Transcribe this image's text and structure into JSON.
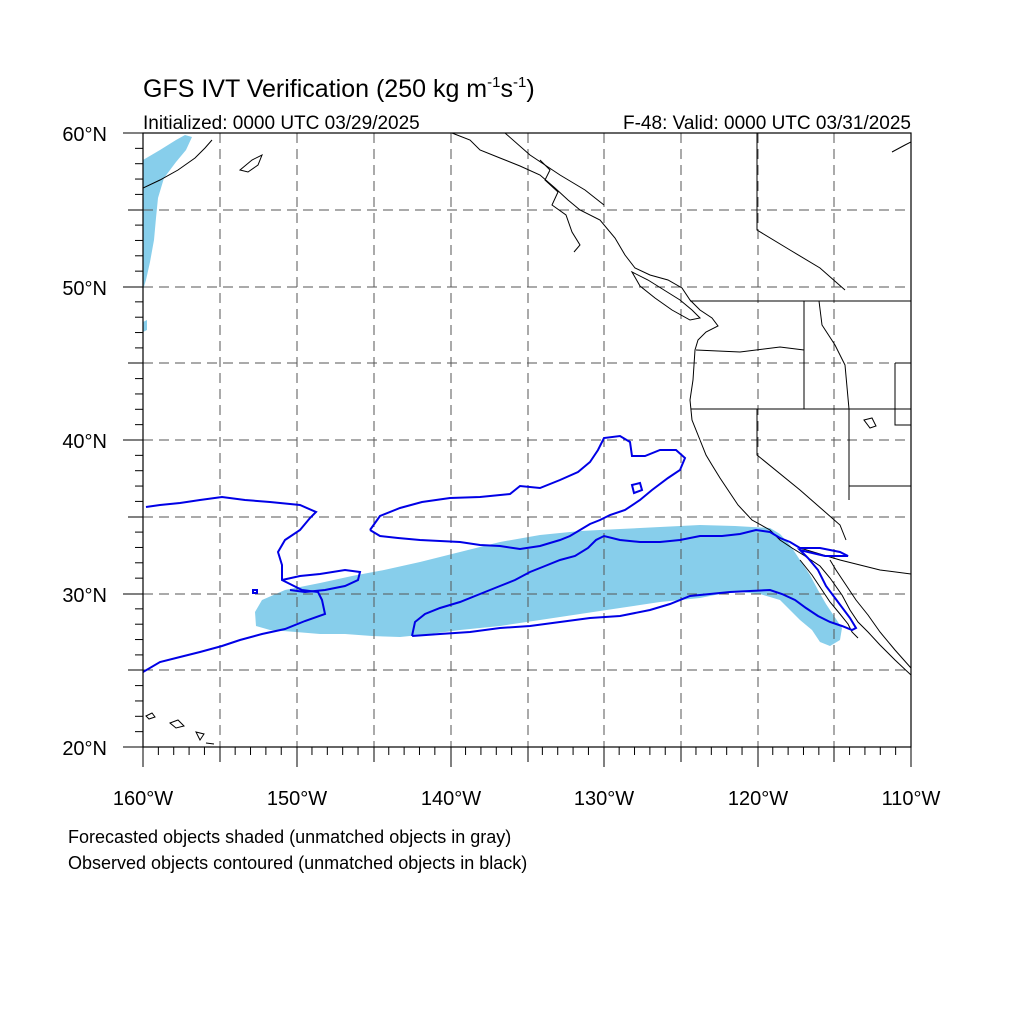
{
  "title": {
    "main": "GFS IVT Verification (250 kg m",
    "exp1": "-1",
    "mid": "s",
    "exp2": "-1",
    "close": ")"
  },
  "subtitle": {
    "left": "Initialized: 0000 UTC 03/29/2025",
    "right": "F-48: Valid: 0000 UTC 03/31/2025"
  },
  "axes": {
    "lon_range": [
      -160,
      -110
    ],
    "lat_range": [
      20,
      60
    ],
    "lon_ticks": [
      {
        "value": -160,
        "label": "160°W"
      },
      {
        "value": -150,
        "label": "150°W"
      },
      {
        "value": -140,
        "label": "140°W"
      },
      {
        "value": -130,
        "label": "130°W"
      },
      {
        "value": -120,
        "label": "120°W"
      },
      {
        "value": -110,
        "label": "110°W"
      }
    ],
    "lat_ticks": [
      {
        "value": 20,
        "label": "20°N"
      },
      {
        "value": 30,
        "label": "30°N"
      },
      {
        "value": 40,
        "label": "40°N"
      },
      {
        "value": 50,
        "label": "50°N"
      },
      {
        "value": 60,
        "label": "60°N"
      }
    ],
    "grid_lon_step": 5,
    "grid_lat_step": 5,
    "grid": true
  },
  "notes": {
    "forecast": "Forecasted objects shaded (unmatched objects in gray)",
    "observed": "Observed objects contoured (unmatched objects in black)"
  },
  "colors": {
    "forecast_fill": "#87ceeb",
    "observed_contour": "#0000e6",
    "coastline": "#000000",
    "grid": "#555555"
  }
}
